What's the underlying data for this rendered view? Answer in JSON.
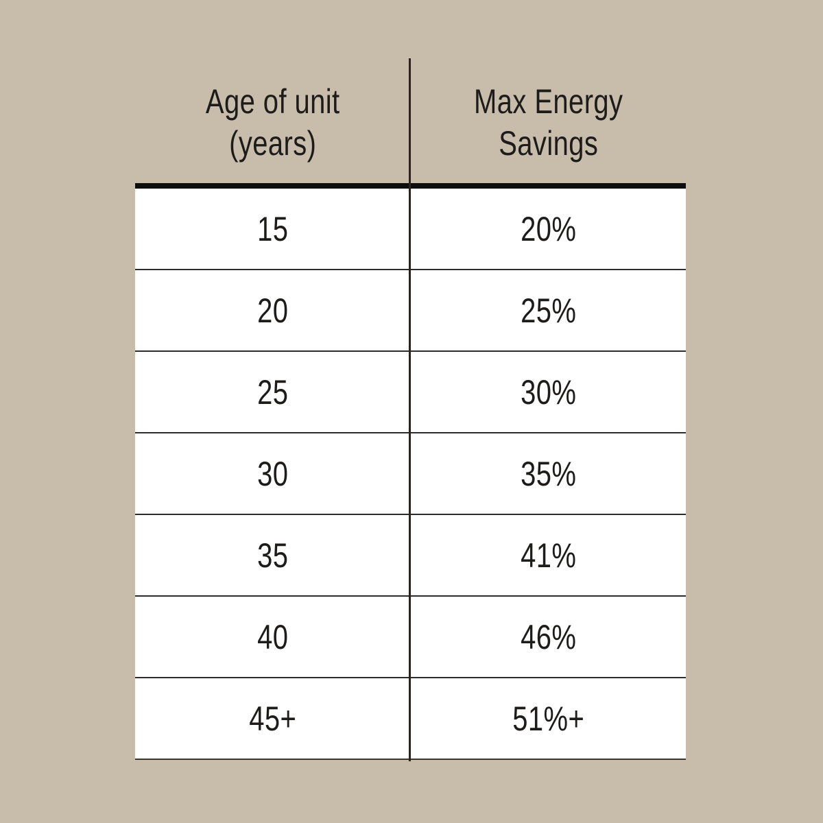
{
  "colors": {
    "background": "#c8bcab",
    "cell_background": "#ffffff",
    "text": "#1d1c1a",
    "header_rule": "#0e0e0e",
    "grid_line": "#2b2b2b"
  },
  "header": {
    "col1": "Age of unit\n(years)",
    "col2": "Max Energy\nSavings"
  },
  "chart_data": {
    "type": "table",
    "columns": [
      "Age of unit (years)",
      "Max Energy Savings"
    ],
    "rows": [
      [
        "15",
        "20%"
      ],
      [
        "20",
        "25%"
      ],
      [
        "25",
        "30%"
      ],
      [
        "30",
        "35%"
      ],
      [
        "35",
        "41%"
      ],
      [
        "40",
        "46%"
      ],
      [
        "45+",
        "51%+"
      ]
    ]
  }
}
